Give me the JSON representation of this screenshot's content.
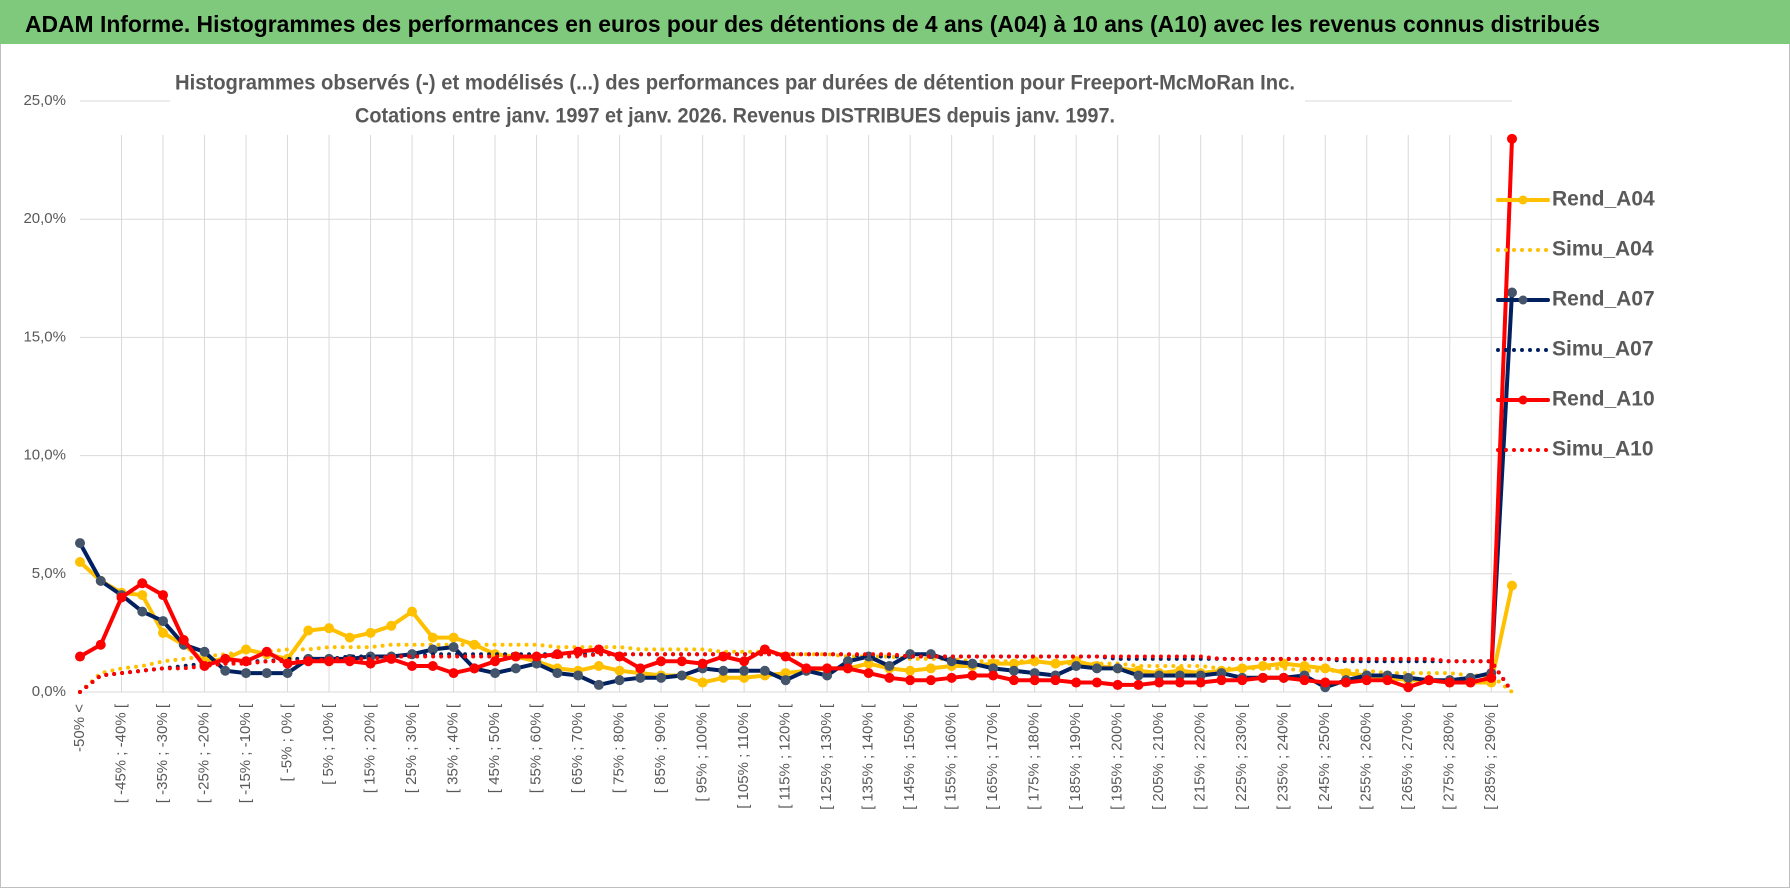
{
  "header": {
    "title": "ADAM Informe. Histogrammes des performances en euros pour des détentions de 4 ans (A04) à 10 ans (A10) avec les revenus connus distribués"
  },
  "chart_data": {
    "type": "line",
    "title": "Histogrammes observés (-) et modélisés (...) des performances par durées de détention pour Freeport-McMoRan Inc.",
    "subtitle": "Cotations entre janv. 1997 et janv. 2026. Revenus DISTRIBUES depuis janv. 1997.",
    "categories": [
      "-50% <",
      null,
      "[ -45% ; -40% [",
      null,
      "[ -35% ; -30% [",
      null,
      "[ -25% ; -20% [",
      null,
      "[ -15% ; -10% [",
      null,
      "[ -5% ; 0% [",
      null,
      "[ 5% ; 10% [",
      null,
      "[ 15% ; 20% [",
      null,
      "[ 25% ; 30% [",
      null,
      "[ 35% ; 40% [",
      null,
      "[ 45% ; 50% [",
      null,
      "[ 55% ; 60% [",
      null,
      "[ 65% ; 70% [",
      null,
      "[ 75% ; 80% [",
      null,
      "[ 85% ; 90% [",
      null,
      "[ 95% ; 100% [",
      null,
      "[ 105% ; 110% [",
      null,
      "[ 115% ; 120% [",
      null,
      "[ 125% ; 130% [",
      null,
      "[ 135% ; 140% [",
      null,
      "[ 145% ; 150% [",
      null,
      "[ 155% ; 160% [",
      null,
      "[ 165% ; 170% [",
      null,
      "[ 175% ; 180% [",
      null,
      "[ 185% ; 190% [",
      null,
      "[ 195% ; 200% [",
      null,
      "[ 205% ; 210% [",
      null,
      "[ 215% ; 220% [",
      null,
      "[ 225% ; 230% [",
      null,
      "[ 235% ; 240% [",
      null,
      "[ 245% ; 250% [",
      null,
      "[ 255% ; 260% [",
      null,
      "[ 265% ; 270% [",
      null,
      "[ 275% ; 280% [",
      null,
      "[ 285% ; 290% [",
      null
    ],
    "series": [
      {
        "name": "Rend_A04",
        "color": "#ffc000",
        "style": "solid",
        "markers": true,
        "values": [
          5.5,
          4.7,
          4.2,
          4.1,
          2.5,
          2.0,
          1.3,
          1.4,
          1.8,
          1.6,
          1.4,
          2.6,
          2.7,
          2.3,
          2.5,
          2.8,
          3.4,
          2.3,
          2.3,
          2.0,
          1.6,
          1.5,
          1.3,
          1.0,
          0.9,
          1.1,
          0.9,
          0.8,
          0.7,
          0.7,
          0.4,
          0.6,
          0.6,
          0.7,
          0.8,
          0.9,
          1.0,
          1.0,
          1.2,
          1.0,
          0.9,
          1.0,
          1.1,
          1.1,
          1.2,
          1.2,
          1.3,
          1.2,
          1.3,
          1.1,
          1.0,
          0.9,
          0.8,
          0.9,
          0.8,
          0.9,
          1.0,
          1.1,
          1.2,
          1.1,
          1.0,
          0.8,
          0.7,
          0.6,
          0.5,
          0.5,
          0.4,
          0.4,
          0.4,
          4.5
        ]
      },
      {
        "name": "Simu_A04",
        "color": "#ffc000",
        "style": "dotted",
        "markers": false,
        "values": [
          0.0,
          0.8,
          1.0,
          1.1,
          1.3,
          1.4,
          1.5,
          1.6,
          1.7,
          1.7,
          1.8,
          1.8,
          1.9,
          1.9,
          1.9,
          2.0,
          2.0,
          2.0,
          2.0,
          2.0,
          2.0,
          2.0,
          2.0,
          1.9,
          1.9,
          1.9,
          1.9,
          1.8,
          1.8,
          1.8,
          1.8,
          1.7,
          1.7,
          1.7,
          1.6,
          1.6,
          1.6,
          1.5,
          1.5,
          1.5,
          1.4,
          1.4,
          1.4,
          1.3,
          1.3,
          1.3,
          1.3,
          1.2,
          1.2,
          1.2,
          1.2,
          1.1,
          1.1,
          1.1,
          1.1,
          1.0,
          1.0,
          1.0,
          1.0,
          0.9,
          0.9,
          0.9,
          0.9,
          0.8,
          0.8,
          0.8,
          0.8,
          0.7,
          0.7,
          0.0
        ]
      },
      {
        "name": "Rend_A07",
        "color": "#002060",
        "marker_color": "#44546a",
        "style": "solid",
        "markers": true,
        "values": [
          6.3,
          4.7,
          4.1,
          3.4,
          3.0,
          2.0,
          1.7,
          0.9,
          0.8,
          0.8,
          0.8,
          1.4,
          1.4,
          1.4,
          1.5,
          1.5,
          1.6,
          1.8,
          1.9,
          1.0,
          0.8,
          1.0,
          1.2,
          0.8,
          0.7,
          0.3,
          0.5,
          0.6,
          0.6,
          0.7,
          1.0,
          0.9,
          0.9,
          0.9,
          0.5,
          0.9,
          0.7,
          1.3,
          1.5,
          1.1,
          1.6,
          1.6,
          1.3,
          1.2,
          1.0,
          0.9,
          0.8,
          0.7,
          1.1,
          1.0,
          1.0,
          0.7,
          0.7,
          0.7,
          0.7,
          0.8,
          0.6,
          0.6,
          0.6,
          0.7,
          0.2,
          0.5,
          0.7,
          0.7,
          0.6,
          0.5,
          0.5,
          0.6,
          0.8,
          16.9
        ]
      },
      {
        "name": "Simu_A07",
        "color": "#002060",
        "style": "dotted",
        "markers": false,
        "values": [
          0.0,
          0.7,
          0.8,
          0.9,
          1.0,
          1.1,
          1.2,
          1.2,
          1.3,
          1.3,
          1.4,
          1.4,
          1.4,
          1.5,
          1.5,
          1.5,
          1.5,
          1.6,
          1.6,
          1.6,
          1.6,
          1.6,
          1.6,
          1.6,
          1.6,
          1.6,
          1.6,
          1.6,
          1.6,
          1.6,
          1.6,
          1.6,
          1.6,
          1.6,
          1.6,
          1.6,
          1.6,
          1.6,
          1.5,
          1.5,
          1.5,
          1.5,
          1.5,
          1.5,
          1.5,
          1.5,
          1.5,
          1.5,
          1.5,
          1.5,
          1.4,
          1.4,
          1.4,
          1.4,
          1.4,
          1.4,
          1.4,
          1.4,
          1.4,
          1.4,
          1.4,
          1.3,
          1.3,
          1.3,
          1.3,
          1.3,
          1.3,
          1.3,
          1.3,
          0.0
        ]
      },
      {
        "name": "Rend_A10",
        "color": "#ff0000",
        "style": "solid",
        "markers": true,
        "values": [
          1.5,
          2.0,
          4.0,
          4.6,
          4.1,
          2.2,
          1.1,
          1.4,
          1.3,
          1.7,
          1.2,
          1.3,
          1.3,
          1.3,
          1.2,
          1.4,
          1.1,
          1.1,
          0.8,
          1.0,
          1.3,
          1.5,
          1.5,
          1.6,
          1.7,
          1.8,
          1.5,
          1.0,
          1.3,
          1.3,
          1.2,
          1.5,
          1.3,
          1.8,
          1.5,
          1.0,
          1.0,
          1.0,
          0.8,
          0.6,
          0.5,
          0.5,
          0.6,
          0.7,
          0.7,
          0.5,
          0.5,
          0.5,
          0.4,
          0.4,
          0.3,
          0.3,
          0.4,
          0.4,
          0.4,
          0.5,
          0.5,
          0.6,
          0.6,
          0.5,
          0.4,
          0.4,
          0.5,
          0.5,
          0.2,
          0.5,
          0.4,
          0.4,
          0.6,
          23.4
        ]
      },
      {
        "name": "Simu_A10",
        "color": "#ff0000",
        "style": "dotted",
        "markers": false,
        "values": [
          0.0,
          0.7,
          0.8,
          0.9,
          1.0,
          1.0,
          1.1,
          1.2,
          1.2,
          1.3,
          1.3,
          1.3,
          1.4,
          1.4,
          1.4,
          1.5,
          1.5,
          1.5,
          1.5,
          1.5,
          1.5,
          1.5,
          1.5,
          1.5,
          1.5,
          1.6,
          1.6,
          1.6,
          1.6,
          1.6,
          1.6,
          1.6,
          1.6,
          1.6,
          1.6,
          1.6,
          1.6,
          1.6,
          1.6,
          1.6,
          1.5,
          1.5,
          1.5,
          1.5,
          1.5,
          1.5,
          1.5,
          1.5,
          1.5,
          1.5,
          1.5,
          1.5,
          1.5,
          1.5,
          1.5,
          1.4,
          1.4,
          1.4,
          1.4,
          1.4,
          1.4,
          1.4,
          1.4,
          1.4,
          1.4,
          1.4,
          1.3,
          1.3,
          1.3,
          0.0
        ]
      }
    ],
    "ylim": [
      0,
      25
    ],
    "yticks": [
      {
        "value": 0,
        "label": "0,0%"
      },
      {
        "value": 5,
        "label": "5,0%"
      },
      {
        "value": 10,
        "label": "10,0%"
      },
      {
        "value": 15,
        "label": "15,0%"
      },
      {
        "value": 20,
        "label": "20,0%"
      },
      {
        "value": 25,
        "label": "25,0%"
      }
    ],
    "grid": true,
    "legend": "right"
  }
}
